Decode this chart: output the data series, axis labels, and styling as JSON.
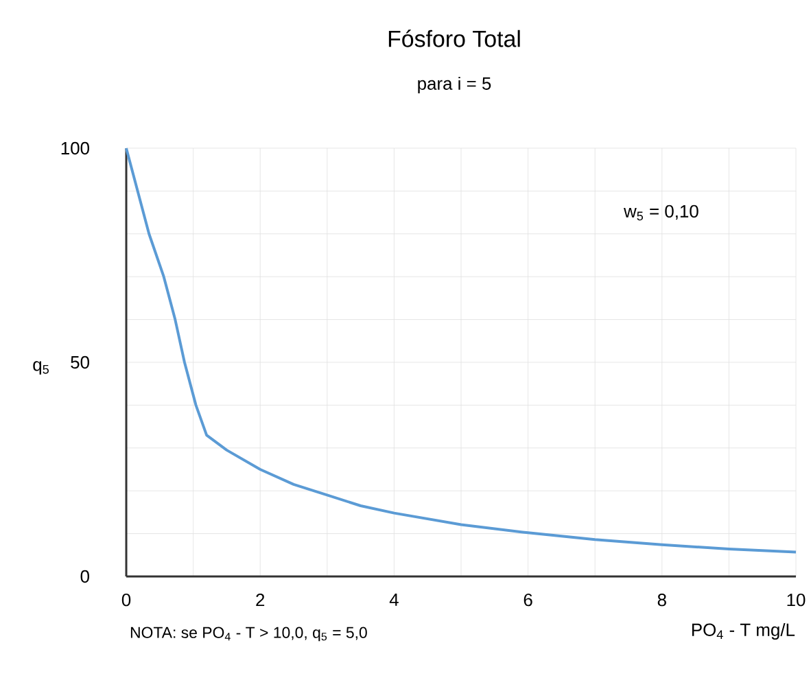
{
  "chart_data": {
    "type": "line",
    "title": "Fósforo Total",
    "subtitle": "para i = 5",
    "xlabel": "PO$_{4}$ - T mg/L",
    "ylabel": "q$_{5}$",
    "annotations": [
      "w$_{5}$ = 0,10",
      "NOTA: se PO$_{4}$ - T > 10,0, q$_{5}$ = 5,0"
    ],
    "x": [
      0,
      0.34,
      0.56,
      0.73,
      0.87,
      1.04,
      1.2,
      1.5,
      2,
      2.5,
      3,
      3.5,
      4,
      5,
      6,
      7,
      8,
      9,
      10
    ],
    "series": [
      {
        "color": "#5b9bd5",
        "values": [
          100,
          80,
          70,
          60,
          50,
          40,
          33,
          29.5,
          25,
          21.5,
          19,
          16.5,
          14.8,
          12.1,
          10.2,
          8.6,
          7.4,
          6.4,
          5.7
        ]
      }
    ],
    "xlim": [
      0,
      10
    ],
    "ylim": [
      0,
      100
    ],
    "xticks": [
      0,
      {
        "value": 1,
        "label": null
      },
      2,
      {
        "value": 3,
        "label": null
      },
      4,
      {
        "value": 5,
        "label": null
      },
      6,
      {
        "value": 7,
        "label": null
      },
      8,
      {
        "value": 9,
        "label": null
      },
      10
    ],
    "yticks": [
      0,
      {
        "value": 10,
        "label": null
      },
      {
        "value": 20,
        "label": null
      },
      {
        "value": 30,
        "label": null
      },
      {
        "value": 40,
        "label": null
      },
      50,
      {
        "value": 60,
        "label": null
      },
      {
        "value": 70,
        "label": null
      },
      {
        "value": 80,
        "label": null
      },
      {
        "value": 90,
        "label": null
      },
      100
    ],
    "grid": true,
    "marker": "none",
    "line_style": "solid"
  }
}
